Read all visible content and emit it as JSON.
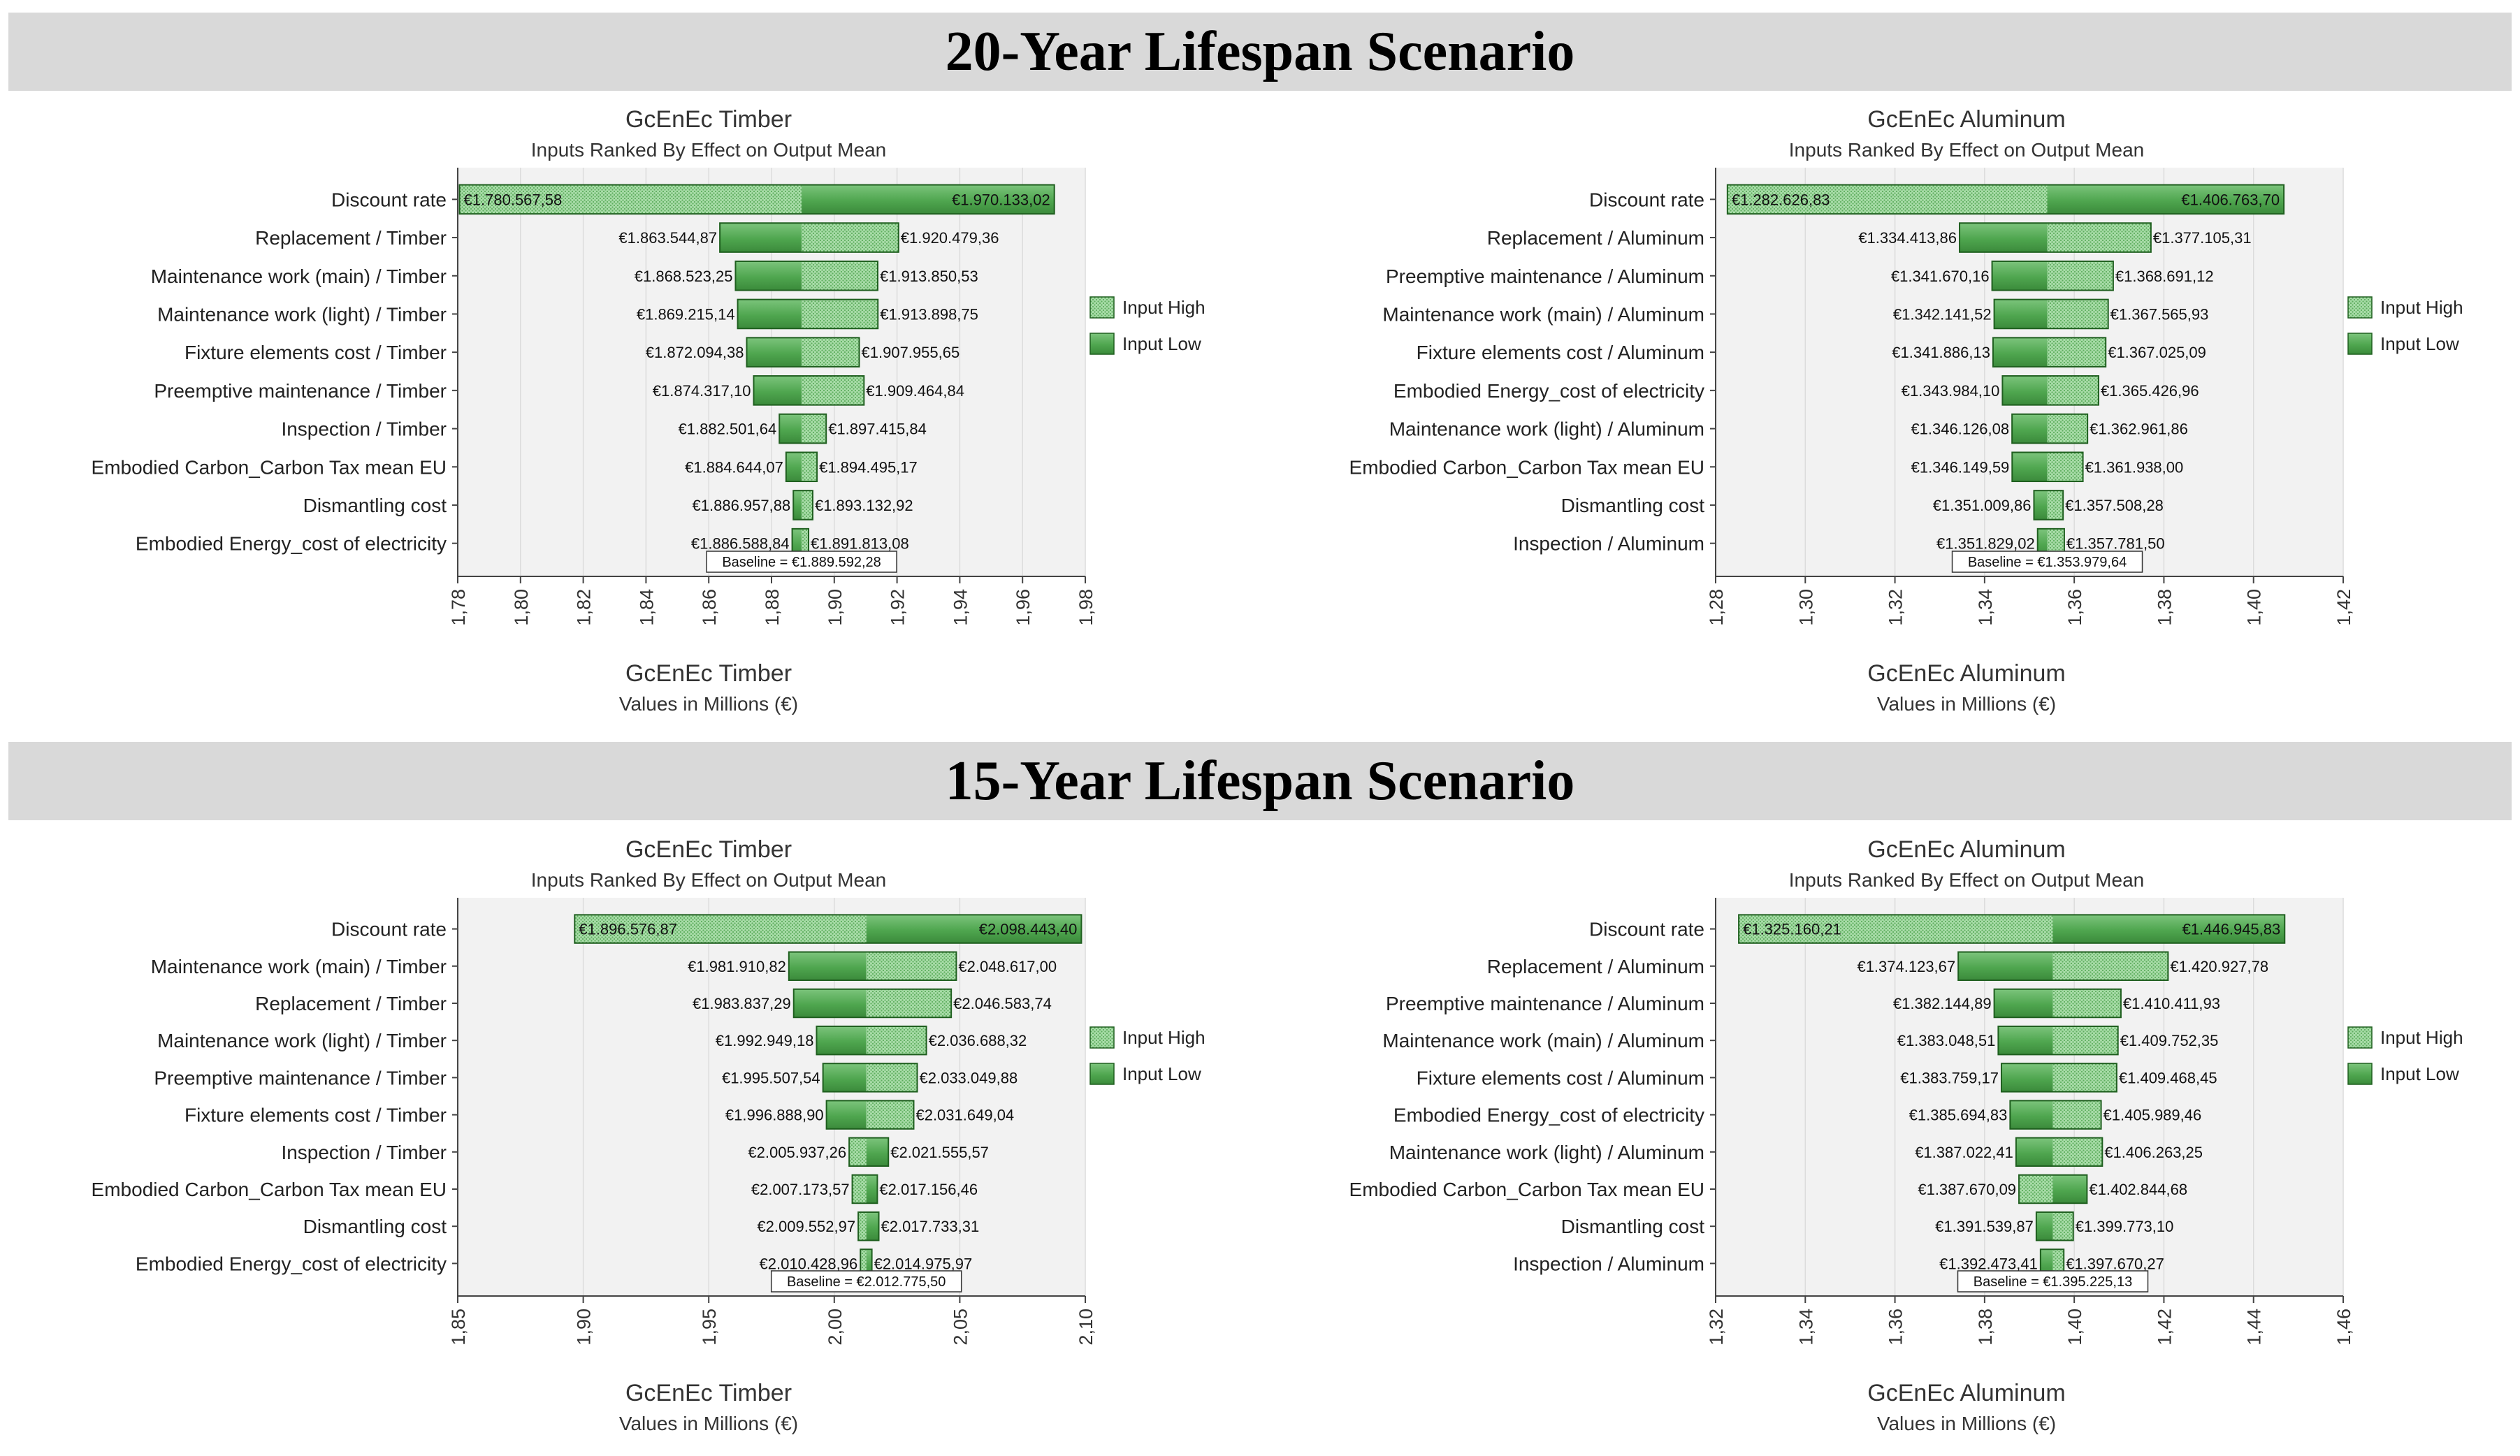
{
  "sections": [
    {
      "title": "20-Year Lifespan Scenario"
    },
    {
      "title": "15-Year Lifespan Scenario"
    }
  ],
  "legend": {
    "high": "Input High",
    "low": "Input Low"
  },
  "colors": {
    "bar_dark": "#4fa64f",
    "bar_light": "#a8dca8",
    "bar_border": "#1f5f1f",
    "plot_bg": "#f2f2f2",
    "grid": "#dcdcdc"
  },
  "chart_data": [
    {
      "type": "bar",
      "title": "GcEnEc Timber",
      "subtitle": "Inputs Ranked By Effect on Output Mean",
      "xtitle": "GcEnEc Timber",
      "xlabel": "Values in Millions (€)",
      "xlim": [
        1.78,
        1.98
      ],
      "xticks": [
        "1,78",
        "1,80",
        "1,82",
        "1,84",
        "1,86",
        "1,88",
        "1,90",
        "1,92",
        "1,94",
        "1,96",
        "1,98"
      ],
      "baseline": 1.88959228,
      "baseline_label": "Baseline = €1.889.592,28",
      "legend": "right",
      "categories": [
        "Discount rate",
        "Replacement / Timber",
        "Maintenance work (main) / Timber",
        "Maintenance work (light) / Timber",
        "Fixture elements cost / Timber",
        "Preemptive maintenance / Timber",
        "Inspection / Timber",
        "Embodied Carbon_Carbon Tax mean EU",
        "Dismantling cost",
        "Embodied Energy_cost of  electricity"
      ],
      "low": [
        1.78056758,
        1.86354487,
        1.86852325,
        1.86921514,
        1.87209438,
        1.8743171,
        1.88250164,
        1.88464407,
        1.88695788,
        1.88658884
      ],
      "high": [
        1.97013302,
        1.92047936,
        1.91385053,
        1.91389875,
        1.90795565,
        1.90946484,
        1.89741584,
        1.89449517,
        1.89313292,
        1.89181308
      ],
      "low_labels": [
        "€1.780.567,58",
        "€1.863.544,87",
        "€1.868.523,25",
        "€1.869.215,14",
        "€1.872.094,38",
        "€1.874.317,10",
        "€1.882.501,64",
        "€1.884.644,07",
        "€1.886.957,88",
        "€1.886.588,84"
      ],
      "high_labels": [
        "€1.970.133,02",
        "€1.920.479,36",
        "€1.913.850,53",
        "€1.913.898,75",
        "€1.907.955,65",
        "€1.909.464,84",
        "€1.897.415,84",
        "€1.894.495,17",
        "€1.893.132,92",
        "€1.891.813,08"
      ],
      "light_side": [
        "low",
        "high",
        "high",
        "high",
        "high",
        "high",
        "high",
        "high",
        "high",
        "high"
      ]
    },
    {
      "type": "bar",
      "title": "GcEnEc Aluminum",
      "subtitle": "Inputs Ranked By Effect on Output Mean",
      "xtitle": "GcEnEc Aluminum",
      "xlabel": "Values in Millions (€)",
      "xlim": [
        1.28,
        1.42
      ],
      "xticks": [
        "1,28",
        "1,30",
        "1,32",
        "1,34",
        "1,36",
        "1,38",
        "1,40",
        "1,42"
      ],
      "baseline": 1.35397964,
      "baseline_label": "Baseline = €1.353.979,64",
      "legend": "right",
      "categories": [
        "Discount rate",
        "Replacement / Aluminum",
        "Preemptive maintenance / Aluminum",
        "Maintenance work (main) / Aluminum",
        "Fixture elements cost / Aluminum",
        "Embodied Energy_cost of  electricity",
        "Maintenance work (light) / Aluminum",
        "Embodied Carbon_Carbon Tax mean EU",
        "Dismantling cost",
        "Inspection / Aluminum"
      ],
      "low": [
        1.28262683,
        1.33441386,
        1.34167016,
        1.34214152,
        1.34188613,
        1.3439841,
        1.34612608,
        1.34614959,
        1.35100986,
        1.35182902
      ],
      "high": [
        1.4067637,
        1.37710531,
        1.36869112,
        1.36756593,
        1.36702509,
        1.36542696,
        1.36296186,
        1.361938,
        1.35750828,
        1.3577815
      ],
      "low_labels": [
        "€1.282.626,83",
        "€1.334.413,86",
        "€1.341.670,16",
        "€1.342.141,52",
        "€1.341.886,13",
        "€1.343.984,10",
        "€1.346.126,08",
        "€1.346.149,59",
        "€1.351.009,86",
        "€1.351.829,02"
      ],
      "high_labels": [
        "€1.406.763,70",
        "€1.377.105,31",
        "€1.368.691,12",
        "€1.367.565,93",
        "€1.367.025,09",
        "€1.365.426,96",
        "€1.362.961,86",
        "€1.361.938,00",
        "€1.357.508,28",
        "€1.357.781,50"
      ],
      "light_side": [
        "low",
        "high",
        "high",
        "high",
        "high",
        "high",
        "high",
        "high",
        "high",
        "high"
      ]
    },
    {
      "type": "bar",
      "title": "GcEnEc Timber",
      "subtitle": "Inputs Ranked By Effect on Output Mean",
      "xtitle": "GcEnEc Timber",
      "xlabel": "Values in Millions (€)",
      "xlim": [
        1.85,
        2.1
      ],
      "xticks": [
        "1,85",
        "1,90",
        "1,95",
        "2,00",
        "2,05",
        "2,10"
      ],
      "baseline": 2.0127755,
      "baseline_label": "Baseline = €2.012.775,50",
      "legend": "right",
      "categories": [
        "Discount rate",
        "Maintenance work (main) / Timber",
        "Replacement / Timber",
        "Maintenance work (light) / Timber",
        "Preemptive maintenance / Timber",
        "Fixture elements cost / Timber",
        "Inspection / Timber",
        "Embodied Carbon_Carbon Tax mean EU",
        "Dismantling cost",
        "Embodied Energy_cost of  electricity"
      ],
      "low": [
        1.89657687,
        1.98191082,
        1.98383729,
        1.99294918,
        1.99550754,
        1.9968889,
        2.00593726,
        2.00717357,
        2.00955297,
        2.01042896
      ],
      "high": [
        2.0984434,
        2.048617,
        2.04658374,
        2.03668832,
        2.03304988,
        2.03164904,
        2.02155557,
        2.01715646,
        2.01773331,
        2.01497597
      ],
      "low_labels": [
        "€1.896.576,87",
        "€1.981.910,82",
        "€1.983.837,29",
        "€1.992.949,18",
        "€1.995.507,54",
        "€1.996.888,90",
        "€2.005.937,26",
        "€2.007.173,57",
        "€2.009.552,97",
        "€2.010.428,96"
      ],
      "high_labels": [
        "€2.098.443,40",
        "€2.048.617,00",
        "€2.046.583,74",
        "€2.036.688,32",
        "€2.033.049,88",
        "€2.031.649,04",
        "€2.021.555,57",
        "€2.017.156,46",
        "€2.017.733,31",
        "€2.014.975,97"
      ],
      "light_side": [
        "low",
        "high",
        "high",
        "high",
        "high",
        "high",
        "low",
        "low",
        "low",
        "low"
      ]
    },
    {
      "type": "bar",
      "title": "GcEnEc Aluminum",
      "subtitle": "Inputs Ranked By Effect on Output Mean",
      "xtitle": "GcEnEc Aluminum",
      "xlabel": "Values in Millions (€)",
      "xlim": [
        1.32,
        1.46
      ],
      "xticks": [
        "1,32",
        "1,34",
        "1,36",
        "1,38",
        "1,40",
        "1,42",
        "1,44",
        "1,46"
      ],
      "baseline": 1.39522513,
      "baseline_label": "Baseline = €1.395.225,13",
      "legend": "right",
      "categories": [
        "Discount rate",
        "Replacement / Aluminum",
        "Preemptive maintenance / Aluminum",
        "Maintenance work (main) / Aluminum",
        "Fixture elements cost / Aluminum",
        "Embodied Energy_cost of  electricity",
        "Maintenance work (light) / Aluminum",
        "Embodied Carbon_Carbon Tax mean EU",
        "Dismantling cost",
        "Inspection / Aluminum"
      ],
      "low": [
        1.32516021,
        1.37412367,
        1.38214489,
        1.38304851,
        1.38375917,
        1.38569483,
        1.38702241,
        1.38767009,
        1.39153987,
        1.39247341
      ],
      "high": [
        1.44694583,
        1.42092778,
        1.41041193,
        1.40975235,
        1.40946845,
        1.40598946,
        1.40626325,
        1.40284468,
        1.3997731,
        1.39767027
      ],
      "low_labels": [
        "€1.325.160,21",
        "€1.374.123,67",
        "€1.382.144,89",
        "€1.383.048,51",
        "€1.383.759,17",
        "€1.385.694,83",
        "€1.387.022,41",
        "€1.387.670,09",
        "€1.391.539,87",
        "€1.392.473,41"
      ],
      "high_labels": [
        "€1.446.945,83",
        "€1.420.927,78",
        "€1.410.411,93",
        "€1.409.752,35",
        "€1.409.468,45",
        "€1.405.989,46",
        "€1.406.263,25",
        "€1.402.844,68",
        "€1.399.773,10",
        "€1.397.670,27"
      ],
      "light_side": [
        "low",
        "high",
        "high",
        "high",
        "high",
        "high",
        "high",
        "low",
        "high",
        "high"
      ]
    }
  ]
}
